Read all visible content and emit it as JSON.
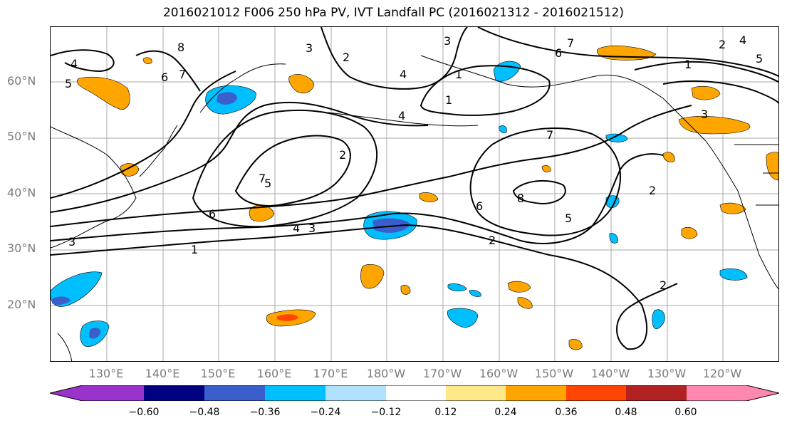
{
  "title": "2016021012 F006 250 hPa PV, IVT Landfall PC (2016021312 - 2016021512)",
  "lat_labels": [
    "60°N",
    "50°N",
    "40°N",
    "30°N",
    "20°N"
  ],
  "lon_labels": [
    "130°E",
    "140°E",
    "150°E",
    "160°E",
    "170°E",
    "180°W",
    "170°W",
    "160°W",
    "150°W",
    "140°W",
    "130°W",
    "120°W"
  ],
  "contour_labels": [
    "4",
    "5",
    "6",
    "7",
    "8",
    "3",
    "2",
    "1",
    "6",
    "5",
    "4",
    "3",
    "2",
    "7",
    "6",
    "8",
    "5",
    "4",
    "3",
    "2",
    "1",
    "7",
    "2",
    "3",
    "1",
    "6",
    "7",
    "1",
    "2",
    "4",
    "5",
    "2",
    "3",
    "4"
  ],
  "colorbar": {
    "ticks": [
      "−0.60",
      "−0.48",
      "−0.36",
      "−0.24",
      "−0.12",
      "0.12",
      "0.24",
      "0.36",
      "0.48",
      "0.60"
    ],
    "colors": [
      "#9933cc",
      "#000080",
      "#3a5fcd",
      "#00bfff",
      "#b0e2ff",
      "#ffffff",
      "#ffe88a",
      "#ffa500",
      "#ff4500",
      "#b22222",
      "#ff88b0"
    ]
  }
}
